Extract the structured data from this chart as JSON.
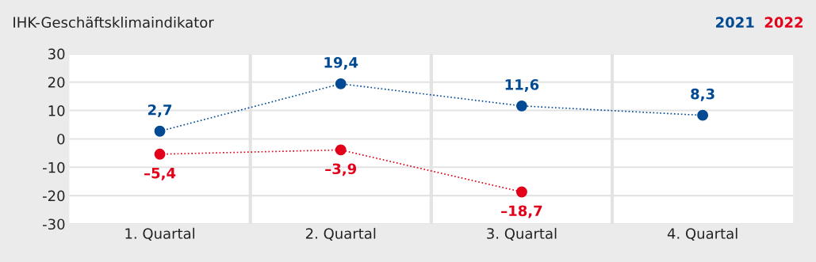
{
  "chart_data": {
    "type": "line",
    "title": "IHK-Geschäftsklimaindikator",
    "categories": [
      "1. Quartal",
      "2. Quartal",
      "3. Quartal",
      "4. Quartal"
    ],
    "series": [
      {
        "name": "2021",
        "color": "#004a94",
        "values": [
          2.7,
          19.4,
          11.6,
          8.3
        ],
        "value_labels": [
          "2,7",
          "19,4",
          "11,6",
          "8,3"
        ]
      },
      {
        "name": "2022",
        "color": "#e2001a",
        "values": [
          -5.4,
          -3.9,
          -18.7,
          null
        ],
        "value_labels": [
          "–5,4",
          "–3,9",
          "–18,7",
          null
        ]
      }
    ],
    "ylim": [
      -30,
      30
    ],
    "yticks": [
      -30,
      -20,
      -10,
      0,
      10,
      20,
      30
    ],
    "grid": true,
    "legend": "top right",
    "marker": "circle",
    "line_style": "dotted"
  }
}
